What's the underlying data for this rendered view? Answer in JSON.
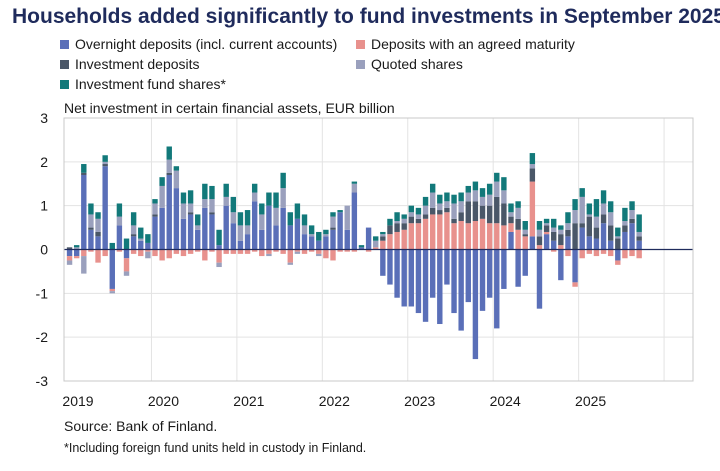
{
  "title": "Households added significantly to fund investments in September 2025",
  "unit_label": "Net investment in certain financial assets, EUR billion",
  "source": "Source: Bank of Finland.",
  "footnote": "*Including foreign fund units held in custody in Finland.",
  "chart_data": {
    "type": "bar",
    "stacked": true,
    "ylim": [
      -3,
      3
    ],
    "yticks": [
      3,
      2,
      1,
      0,
      -1,
      -2,
      -3
    ],
    "xticks": [
      "2019",
      "2020",
      "2021",
      "2022",
      "2023",
      "2024",
      "2025"
    ],
    "grid": true,
    "legend_position": "top",
    "categories": [
      "2019-01",
      "2019-02",
      "2019-03",
      "2019-04",
      "2019-05",
      "2019-06",
      "2019-07",
      "2019-08",
      "2019-09",
      "2019-10",
      "2019-11",
      "2019-12",
      "2020-01",
      "2020-02",
      "2020-03",
      "2020-04",
      "2020-05",
      "2020-06",
      "2020-07",
      "2020-08",
      "2020-09",
      "2020-10",
      "2020-11",
      "2020-12",
      "2021-01",
      "2021-02",
      "2021-03",
      "2021-04",
      "2021-05",
      "2021-06",
      "2021-07",
      "2021-08",
      "2021-09",
      "2021-10",
      "2021-11",
      "2021-12",
      "2022-01",
      "2022-02",
      "2022-03",
      "2022-04",
      "2022-05",
      "2022-06",
      "2022-07",
      "2022-08",
      "2022-09",
      "2022-10",
      "2022-11",
      "2022-12",
      "2023-01",
      "2023-02",
      "2023-03",
      "2023-04",
      "2023-05",
      "2023-06",
      "2023-07",
      "2023-08",
      "2023-09",
      "2023-10",
      "2023-11",
      "2023-12",
      "2024-01",
      "2024-02",
      "2024-03",
      "2024-04",
      "2024-05",
      "2024-06",
      "2024-07",
      "2024-08",
      "2024-09",
      "2024-10",
      "2024-11",
      "2024-12",
      "2025-01",
      "2025-02",
      "2025-03",
      "2025-04",
      "2025-05",
      "2025-06",
      "2025-07",
      "2025-08",
      "2025-09"
    ],
    "series": [
      {
        "name": "Overnight deposits (incl. current accounts)",
        "color": "#5a6fb8",
        "values": [
          -0.15,
          -0.15,
          1.7,
          0.45,
          0.3,
          1.9,
          -0.9,
          0.55,
          -0.2,
          0.3,
          0.2,
          0.15,
          0.75,
          0.95,
          1.7,
          1.4,
          0.7,
          0.8,
          0.45,
          0.95,
          0.8,
          0.1,
          1.0,
          0.6,
          0.2,
          0.35,
          1.1,
          0.45,
          1.0,
          0.55,
          0.95,
          0.55,
          0.7,
          0.35,
          0.3,
          0.2,
          0.3,
          0.45,
          0.85,
          0.45,
          1.3,
          0.05,
          0.5,
          0.0,
          -0.6,
          -0.8,
          -1.1,
          -1.3,
          -1.3,
          -1.45,
          -1.65,
          -1.1,
          -1.7,
          -0.8,
          -1.45,
          -1.85,
          -1.2,
          -2.5,
          -1.4,
          -1.1,
          -1.8,
          -0.9,
          0.4,
          -0.85,
          -0.6,
          0.3,
          -1.35,
          0.35,
          0.2,
          -0.7,
          0.3,
          -0.75,
          0.5,
          0.3,
          0.25,
          0.6,
          0.2,
          -0.25,
          0.4,
          0.6,
          0.2
        ]
      },
      {
        "name": "Deposits with an agreed maturity",
        "color": "#e8918d",
        "values": [
          -0.1,
          -0.05,
          -0.15,
          -0.05,
          -0.3,
          -0.15,
          -0.05,
          -0.05,
          -0.3,
          -0.1,
          -0.15,
          -0.05,
          -0.15,
          -0.25,
          -0.2,
          -0.1,
          -0.15,
          -0.1,
          -0.05,
          -0.25,
          -0.05,
          -0.3,
          -0.1,
          -0.1,
          -0.1,
          -0.1,
          -0.05,
          -0.15,
          -0.1,
          -0.05,
          -0.1,
          -0.3,
          -0.05,
          -0.1,
          -0.05,
          -0.1,
          -0.2,
          -0.25,
          -0.05,
          -0.05,
          -0.05,
          0.0,
          -0.05,
          0.05,
          0.2,
          0.35,
          0.4,
          0.45,
          0.6,
          0.6,
          0.7,
          0.8,
          0.8,
          0.85,
          0.6,
          0.65,
          0.6,
          0.65,
          0.7,
          0.6,
          0.6,
          0.55,
          0.2,
          0.45,
          0.3,
          1.25,
          0.1,
          0.05,
          -0.05,
          0.1,
          -0.15,
          -0.1,
          -0.2,
          -0.1,
          -0.15,
          -0.1,
          -0.15,
          -0.1,
          -0.2,
          -0.15,
          -0.2
        ]
      },
      {
        "name": "Investment deposits",
        "color": "#4a5768",
        "values": [
          0.05,
          0.0,
          0.05,
          0.05,
          0.1,
          0.05,
          0.0,
          0.0,
          0.0,
          0.05,
          0.0,
          0.0,
          0.05,
          0.0,
          0.05,
          0.0,
          0.0,
          0.05,
          0.0,
          0.0,
          0.05,
          0.0,
          0.0,
          0.0,
          0.0,
          0.0,
          0.0,
          0.0,
          0.0,
          0.0,
          0.0,
          0.0,
          0.0,
          0.0,
          0.0,
          0.0,
          0.0,
          0.05,
          0.0,
          0.0,
          0.0,
          0.0,
          0.0,
          0.0,
          0.1,
          0.2,
          0.2,
          0.15,
          0.15,
          0.1,
          0.1,
          0.15,
          0.1,
          0.1,
          0.1,
          0.2,
          0.5,
          0.45,
          0.3,
          0.4,
          0.6,
          0.5,
          0.15,
          0.25,
          0.05,
          0.3,
          0.2,
          0.15,
          0.2,
          0.25,
          0.15,
          0.6,
          0.1,
          0.45,
          0.25,
          0.2,
          0.35,
          0.25,
          0.15,
          0.1,
          0.1
        ]
      },
      {
        "name": "Quoted shares",
        "color": "#9aa0bd",
        "values": [
          -0.1,
          0.05,
          -0.4,
          0.3,
          0.3,
          0.05,
          -0.05,
          0.2,
          -0.1,
          0.2,
          0.05,
          -0.15,
          0.25,
          0.5,
          0.3,
          0.4,
          0.35,
          0.2,
          0.1,
          0.2,
          0.3,
          -0.1,
          0.2,
          0.25,
          0.35,
          0.2,
          0.2,
          0.35,
          -0.05,
          0.4,
          0.45,
          -0.05,
          -0.05,
          0.2,
          0.05,
          -0.05,
          0.05,
          0.25,
          0.0,
          0.55,
          0.2,
          0.0,
          0.0,
          0.15,
          0.05,
          0.0,
          0.05,
          0.1,
          0.1,
          0.1,
          0.2,
          0.35,
          0.15,
          0.15,
          0.35,
          0.25,
          0.2,
          0.25,
          0.2,
          0.25,
          0.35,
          0.3,
          0.1,
          0.25,
          0.1,
          0.1,
          0.15,
          0.05,
          0.1,
          0.1,
          0.15,
          0.3,
          0.6,
          0.05,
          0.25,
          0.25,
          0.3,
          0.05,
          0.1,
          0.2,
          0.1
        ]
      },
      {
        "name": "Investment fund shares*",
        "color": "#12797a",
        "values": [
          0.0,
          0.05,
          0.2,
          0.25,
          0.15,
          0.15,
          0.15,
          0.3,
          0.25,
          0.3,
          0.25,
          0.2,
          0.1,
          0.2,
          0.3,
          0.1,
          0.25,
          0.3,
          0.25,
          0.35,
          0.3,
          0.35,
          0.3,
          0.35,
          0.3,
          0.35,
          0.2,
          0.25,
          0.3,
          0.35,
          0.35,
          0.3,
          0.35,
          0.25,
          0.2,
          0.2,
          0.1,
          0.1,
          0.05,
          0.0,
          0.05,
          0.05,
          0.0,
          0.1,
          0.05,
          0.15,
          0.2,
          0.1,
          0.15,
          0.15,
          0.2,
          0.2,
          0.2,
          0.2,
          0.2,
          0.2,
          0.15,
          0.2,
          0.2,
          0.25,
          0.2,
          0.3,
          0.2,
          0.15,
          0.2,
          0.25,
          0.2,
          0.1,
          0.2,
          0.1,
          0.25,
          0.25,
          0.2,
          0.25,
          0.4,
          0.3,
          0.25,
          0.2,
          0.3,
          0.2,
          0.4
        ]
      }
    ]
  }
}
